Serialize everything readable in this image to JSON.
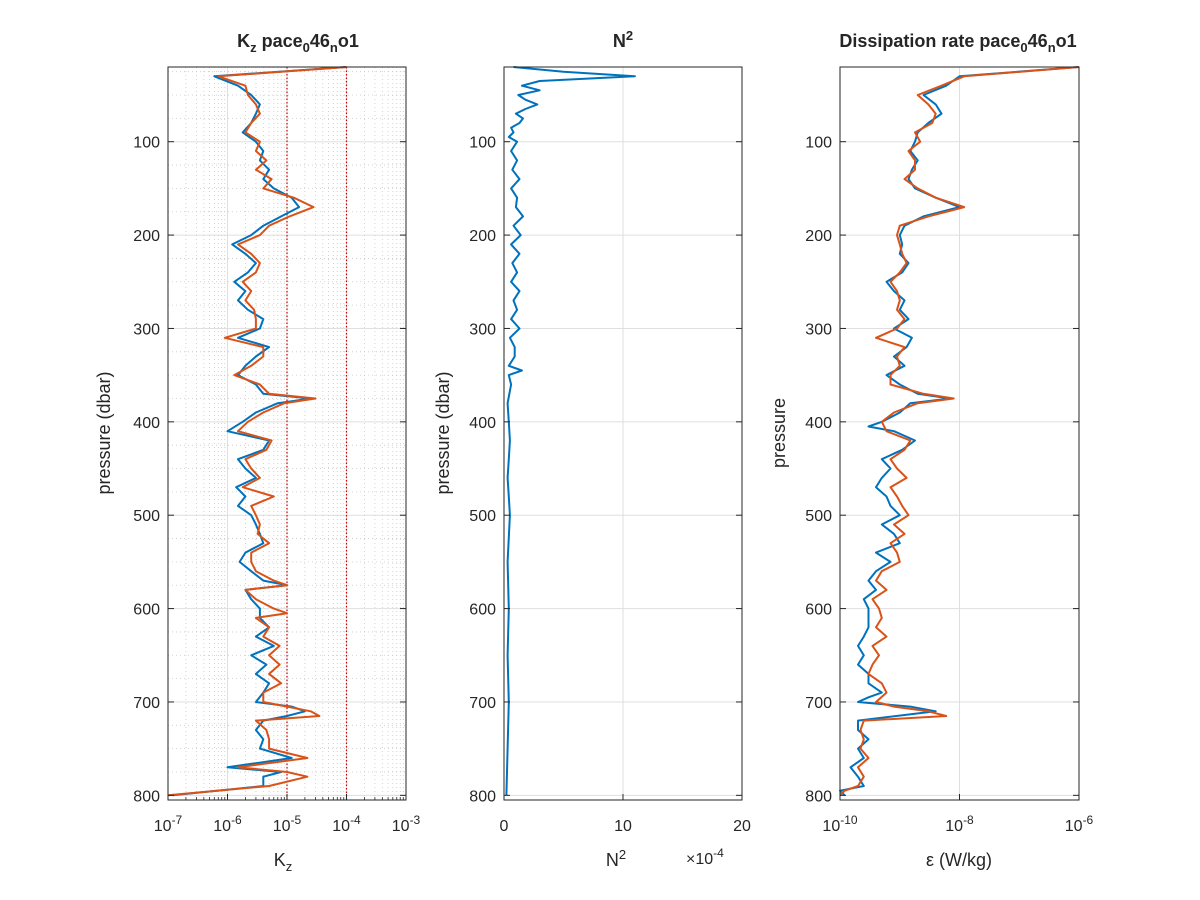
{
  "chart_data": [
    {
      "type": "line",
      "title": {
        "base": "K",
        "sub1": "z",
        "mid": " pace",
        "sub2": "0",
        "mid2": "46",
        "sub3": "n",
        "end": "o1"
      },
      "xlabel": {
        "base": "K",
        "sub": "z"
      },
      "ylabel": "pressure (dbar)",
      "xscale": "log",
      "xlim": [
        1e-07,
        0.001
      ],
      "ylim": [
        20,
        805
      ],
      "y_reversed": true,
      "grid": "major and minor",
      "reference_lines_x": [
        1e-05,
        0.0001
      ],
      "reference_line_color": "#cc0000",
      "xtick_labels": [
        {
          "base": "10",
          "exp": "-7"
        },
        {
          "base": "10",
          "exp": "-6"
        },
        {
          "base": "10",
          "exp": "-5"
        },
        {
          "base": "10",
          "exp": "-4"
        },
        {
          "base": "10",
          "exp": "-3"
        }
      ],
      "ytick_labels": [
        "100",
        "200",
        "300",
        "400",
        "500",
        "600",
        "700",
        "800"
      ],
      "series": [
        {
          "color": "#0072BD",
          "y": [
            20,
            30,
            40,
            50,
            60,
            70,
            80,
            90,
            100,
            110,
            120,
            130,
            140,
            150,
            160,
            170,
            180,
            190,
            200,
            210,
            220,
            230,
            240,
            250,
            260,
            270,
            280,
            290,
            300,
            310,
            320,
            330,
            340,
            350,
            360,
            370,
            375,
            380,
            390,
            400,
            410,
            420,
            430,
            440,
            450,
            460,
            470,
            480,
            490,
            500,
            510,
            520,
            530,
            540,
            550,
            560,
            570,
            575,
            580,
            590,
            600,
            610,
            620,
            630,
            640,
            650,
            660,
            670,
            680,
            690,
            700,
            705,
            710,
            715,
            720,
            730,
            740,
            750,
            760,
            770,
            775,
            780,
            790,
            800
          ],
          "x": [
            0.0001,
            6e-07,
            1.5e-06,
            2.5e-06,
            3.5e-06,
            3e-06,
            2.5e-06,
            1.8e-06,
            3e-06,
            4e-06,
            3.5e-06,
            5e-06,
            4e-06,
            6e-06,
            1.2e-05,
            1.6e-05,
            8e-06,
            4e-06,
            2.5e-06,
            1.2e-06,
            2e-06,
            3e-06,
            2.2e-06,
            1.3e-06,
            2e-06,
            1.5e-06,
            2.2e-06,
            4e-06,
            3.5e-06,
            1.5e-06,
            5e-06,
            3e-06,
            2e-06,
            1.5e-06,
            3e-06,
            4e-06,
            2.5e-05,
            7e-06,
            3e-06,
            1.8e-06,
            1e-06,
            5e-06,
            4e-06,
            1.5e-06,
            2e-06,
            3e-06,
            1.4e-06,
            2e-06,
            1.5e-06,
            2.5e-06,
            3e-06,
            3.5e-06,
            4e-06,
            2e-06,
            1.6e-06,
            2.5e-06,
            4e-06,
            1e-05,
            2e-06,
            2.5e-06,
            3.5e-06,
            3.5e-06,
            5e-06,
            3e-06,
            6e-06,
            2.5e-06,
            4.5e-06,
            3e-06,
            5e-06,
            4e-06,
            3e-06,
            1.2e-05,
            2e-05,
            1e-05,
            4e-06,
            3e-06,
            4e-06,
            3.5e-06,
            1.2e-05,
            1e-06,
            8e-06,
            4e-06,
            4e-06,
            1.2e-07
          ]
        },
        {
          "color": "#D95319",
          "y": [
            20,
            30,
            40,
            50,
            60,
            70,
            80,
            90,
            100,
            110,
            120,
            130,
            140,
            150,
            160,
            170,
            180,
            190,
            200,
            210,
            220,
            230,
            240,
            250,
            260,
            270,
            280,
            290,
            300,
            310,
            320,
            330,
            340,
            350,
            360,
            370,
            375,
            380,
            390,
            400,
            410,
            420,
            430,
            440,
            450,
            460,
            470,
            480,
            490,
            500,
            510,
            520,
            530,
            540,
            550,
            560,
            570,
            575,
            580,
            590,
            600,
            605,
            610,
            620,
            630,
            640,
            650,
            660,
            670,
            680,
            690,
            700,
            705,
            710,
            715,
            720,
            730,
            740,
            750,
            760,
            770,
            775,
            780,
            790,
            800
          ],
          "x": [
            0.0001,
            7e-07,
            2e-06,
            2.2e-06,
            3e-06,
            3.5e-06,
            2.5e-06,
            2e-06,
            3.5e-06,
            3e-06,
            4.5e-06,
            3e-06,
            5.5e-06,
            4e-06,
            1.3e-05,
            2.8e-05,
            1.1e-05,
            5e-06,
            3.5e-06,
            1.5e-06,
            2.5e-06,
            3.5e-06,
            3e-06,
            1.8e-06,
            2.5e-06,
            2e-06,
            2.8e-06,
            3e-06,
            3e-06,
            9e-07,
            4e-06,
            4e-06,
            2.5e-06,
            1.3e-06,
            3.5e-06,
            5e-06,
            3e-05,
            9e-06,
            4e-06,
            2.2e-06,
            1.5e-06,
            5.5e-06,
            4.5e-06,
            2e-06,
            2.5e-06,
            3.5e-06,
            1.8e-06,
            6e-06,
            2.5e-06,
            3e-06,
            3.5e-06,
            3.2e-06,
            5e-06,
            2.5e-06,
            2.5e-06,
            3e-06,
            6e-06,
            1e-05,
            2e-06,
            3e-06,
            6e-06,
            1e-05,
            3e-06,
            5e-06,
            4e-06,
            7.5e-06,
            5e-06,
            7.5e-06,
            5e-06,
            8e-06,
            4e-06,
            4e-06,
            1e-05,
            2.5e-05,
            3.5e-05,
            3e-06,
            4.5e-06,
            5e-06,
            5e-06,
            2.2e-05,
            1.5e-06,
            1e-05,
            2.2e-05,
            5e-06,
            1e-07
          ]
        }
      ]
    },
    {
      "type": "line",
      "title": {
        "base": "N",
        "exp": "2"
      },
      "xlabel": {
        "base": "N",
        "exp": "2"
      },
      "ylabel": "pressure (dbar)",
      "xscale": "linear",
      "xlim": [
        0,
        20
      ],
      "x_exponent_label": {
        "prefix": "×10",
        "exp": "-4"
      },
      "ylim": [
        20,
        805
      ],
      "y_reversed": true,
      "grid": "major",
      "xtick_labels": [
        "0",
        "10",
        "20"
      ],
      "ytick_labels": [
        "100",
        "200",
        "300",
        "400",
        "500",
        "600",
        "700",
        "800"
      ],
      "series": [
        {
          "color": "#0072BD",
          "y": [
            20,
            25,
            30,
            35,
            40,
            45,
            50,
            55,
            60,
            65,
            70,
            75,
            80,
            85,
            90,
            95,
            100,
            110,
            120,
            130,
            140,
            150,
            160,
            170,
            180,
            190,
            200,
            210,
            220,
            230,
            240,
            250,
            260,
            270,
            280,
            290,
            300,
            310,
            320,
            330,
            340,
            345,
            350,
            360,
            380,
            400,
            420,
            440,
            460,
            480,
            500,
            550,
            600,
            650,
            700,
            750,
            800
          ],
          "x": [
            0.8,
            5,
            11,
            3,
            1.5,
            3,
            1.2,
            1.8,
            2.8,
            1.8,
            1,
            1.6,
            1.3,
            0.6,
            0.8,
            0.4,
            1.1,
            0.6,
            1.1,
            0.7,
            1.3,
            0.6,
            1.1,
            1,
            1.6,
            0.8,
            1.4,
            0.6,
            1.3,
            0.7,
            1.1,
            0.6,
            1.3,
            0.8,
            1.1,
            0.6,
            1.3,
            0.5,
            0.9,
            0.9,
            0.4,
            1.5,
            0.4,
            0.6,
            0.3,
            0.4,
            0.5,
            0.4,
            0.3,
            0.4,
            0.5,
            0.3,
            0.4,
            0.3,
            0.4,
            0.3,
            0.2
          ]
        }
      ]
    },
    {
      "type": "line",
      "title": {
        "base": "Dissipation rate pace",
        "sub1": "0",
        "mid": "46",
        "sub2": "n",
        "end": "o1"
      },
      "xlabel": "ε (W/kg)",
      "ylabel": "pressure",
      "xscale": "log",
      "xlim": [
        1e-10,
        1e-06
      ],
      "ylim": [
        20,
        805
      ],
      "y_reversed": true,
      "grid": "major",
      "xtick_labels": [
        {
          "base": "10",
          "exp": "-10"
        },
        {
          "base": "10",
          "exp": "-8"
        },
        {
          "base": "10",
          "exp": "-6"
        }
      ],
      "ytick_labels": [
        "100",
        "200",
        "300",
        "400",
        "500",
        "600",
        "700",
        "800"
      ],
      "series": [
        {
          "color": "#0072BD",
          "y": [
            20,
            30,
            40,
            50,
            60,
            70,
            80,
            90,
            100,
            110,
            120,
            130,
            140,
            150,
            160,
            170,
            180,
            190,
            200,
            210,
            220,
            230,
            240,
            250,
            260,
            270,
            280,
            290,
            300,
            310,
            320,
            330,
            340,
            350,
            360,
            370,
            375,
            380,
            390,
            400,
            405,
            410,
            420,
            430,
            440,
            450,
            460,
            470,
            480,
            490,
            500,
            510,
            520,
            530,
            540,
            550,
            560,
            570,
            580,
            590,
            600,
            610,
            620,
            630,
            640,
            650,
            660,
            670,
            680,
            690,
            695,
            700,
            705,
            710,
            720,
            730,
            740,
            750,
            760,
            770,
            780,
            790,
            795,
            800
          ],
          "x": [
            1e-06,
            1e-08,
            6e-09,
            2.5e-09,
            4e-09,
            5e-09,
            3e-09,
            2e-09,
            1.8e-09,
            1.5e-09,
            2e-09,
            1.6e-09,
            1.4e-09,
            1.8e-09,
            4e-09,
            1e-08,
            2.5e-09,
            1.2e-09,
            1e-09,
            1.1e-09,
            1e-09,
            1.4e-09,
            1.1e-09,
            6e-10,
            8e-10,
            1.2e-09,
            1e-09,
            1.4e-09,
            8e-10,
            1.6e-09,
            1.3e-09,
            8e-10,
            1.2e-09,
            6e-10,
            1e-09,
            2e-09,
            7e-09,
            1.5e-09,
            1e-09,
            5e-10,
            3e-10,
            8e-10,
            1.8e-09,
            1.1e-09,
            5e-10,
            7e-10,
            5e-10,
            4e-10,
            6e-10,
            7e-10,
            1e-09,
            5e-10,
            8e-10,
            1e-09,
            4e-10,
            7e-10,
            4e-10,
            3e-10,
            4e-10,
            2.5e-10,
            3e-10,
            3e-10,
            3e-10,
            2.5e-10,
            2e-10,
            2.5e-10,
            2e-10,
            3e-10,
            3e-10,
            5e-10,
            3e-10,
            2e-10,
            1.5e-09,
            4e-09,
            2e-10,
            2e-10,
            3e-10,
            2e-10,
            2.5e-10,
            1.5e-10,
            2e-10,
            2.5e-10,
            1e-10,
            1.2e-10
          ]
        },
        {
          "color": "#D95319",
          "y": [
            20,
            30,
            40,
            50,
            60,
            70,
            80,
            90,
            100,
            110,
            120,
            130,
            140,
            150,
            160,
            170,
            180,
            190,
            200,
            210,
            220,
            230,
            240,
            250,
            260,
            270,
            280,
            290,
            300,
            310,
            320,
            330,
            340,
            350,
            360,
            370,
            375,
            380,
            390,
            400,
            410,
            420,
            430,
            440,
            450,
            460,
            470,
            480,
            490,
            500,
            510,
            520,
            530,
            540,
            550,
            560,
            570,
            580,
            590,
            600,
            610,
            620,
            630,
            640,
            650,
            660,
            670,
            680,
            690,
            700,
            705,
            710,
            715,
            720,
            730,
            740,
            750,
            760,
            770,
            780,
            790,
            795,
            800
          ],
          "x": [
            1e-06,
            1.2e-08,
            5e-09,
            2e-09,
            3e-09,
            4e-09,
            3.5e-09,
            1.8e-09,
            2.2e-09,
            1.4e-09,
            1.8e-09,
            1.8e-09,
            1.2e-09,
            2e-09,
            4e-09,
            1.2e-08,
            3e-09,
            1e-09,
            9e-10,
            1e-09,
            1.1e-09,
            1.3e-09,
            1e-09,
            7e-10,
            9e-10,
            1e-09,
            9e-10,
            1.2e-09,
            9e-10,
            4e-10,
            1.2e-09,
            9e-10,
            1e-09,
            7e-10,
            7e-10,
            2.5e-09,
            8e-09,
            2e-09,
            8e-10,
            5e-10,
            6e-10,
            1.5e-09,
            1.2e-09,
            7e-10,
            9e-10,
            1.3e-09,
            7e-10,
            9e-10,
            1.1e-09,
            1.4e-09,
            8e-10,
            1.2e-09,
            7e-10,
            9e-10,
            1e-09,
            5e-10,
            4e-10,
            6e-10,
            3.5e-10,
            4.5e-10,
            5e-10,
            4e-10,
            6e-10,
            3.5e-10,
            4.5e-10,
            3.5e-10,
            3e-10,
            5e-10,
            6e-10,
            4e-10,
            8e-10,
            3e-09,
            6e-09,
            2.5e-10,
            2.2e-10,
            2.5e-10,
            2.2e-10,
            3e-10,
            2e-10,
            2.5e-10,
            2e-10,
            1.2e-10,
            1e-10
          ]
        }
      ]
    }
  ]
}
